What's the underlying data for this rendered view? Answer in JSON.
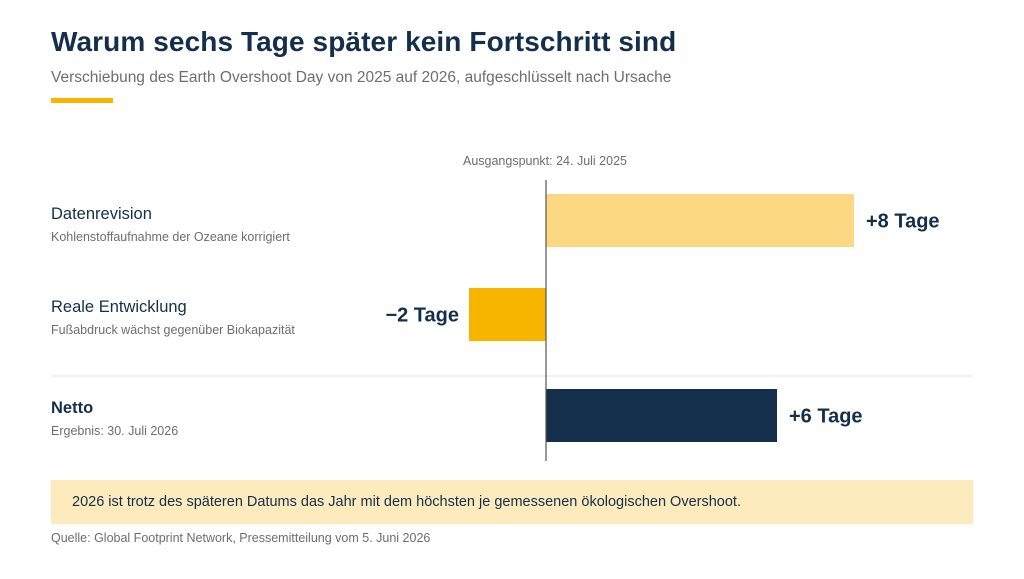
{
  "header": {
    "title": "Warum sechs Tage später kein Fortschritt sind",
    "subtitle": "Verschiebung des Earth Overshoot Day von 2025 auf 2026, aufgeschlüsselt nach Ursache"
  },
  "colors": {
    "accent": "#f8b500",
    "positive_light": "#fcd882",
    "negative": "#f8b500",
    "net": "#142f4c",
    "callout_bg": "#fdebbd",
    "text_dark": "#142f4c",
    "text_muted": "#6e6e6e"
  },
  "chart_data": {
    "type": "bar",
    "orientation": "horizontal",
    "baseline_label": "Ausgangspunkt: 24. Juli 2025",
    "categories": [
      "Datenrevision",
      "Reale Entwicklung",
      "Netto"
    ],
    "descriptions": [
      "Kohlenstoffaufnahme der Ozeane korrigiert",
      "Fußabdruck wächst gegenüber Biokapazität",
      "Ergebnis: 30. Juli 2026"
    ],
    "values": [
      8,
      -2,
      6
    ],
    "value_labels": [
      "+8 Tage",
      "−2 Tage",
      "+6 Tage"
    ],
    "unit": "Tage",
    "xlim": [
      -3,
      10
    ],
    "grid": false,
    "legend": "none"
  },
  "callout": {
    "text": "2026 ist trotz des späteren Datums das Jahr mit dem höchsten je gemessenen ökologischen Overshoot."
  },
  "footer": {
    "source": "Quelle: Global Footprint Network, Pressemitteilung vom 5. Juni 2026"
  }
}
